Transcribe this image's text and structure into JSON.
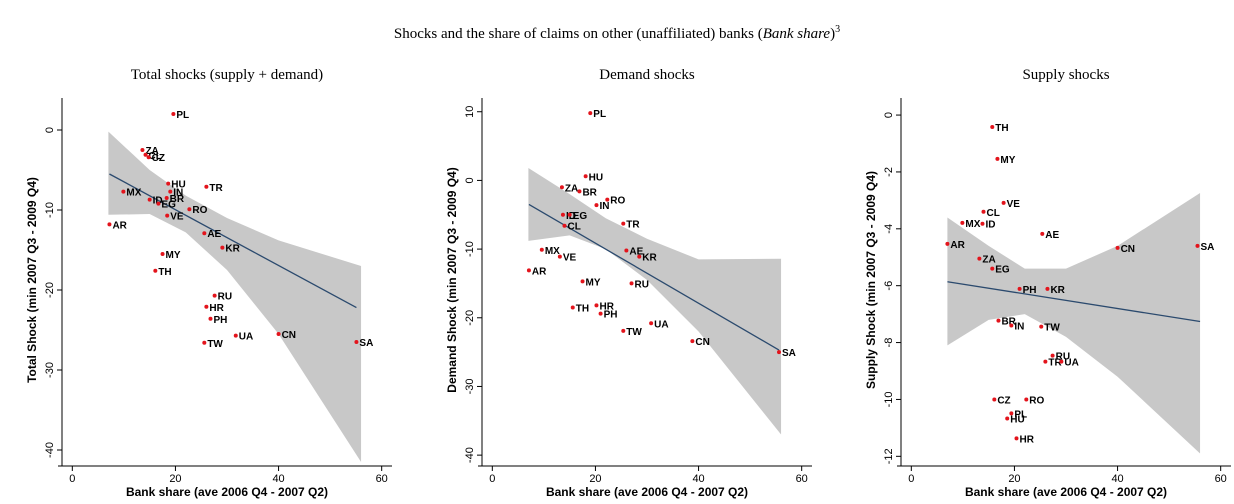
{
  "title_parts": [
    "Shocks and the share of claims on other (unaffiliated) banks (",
    "Bank share",
    ")",
    "3"
  ],
  "chart_data": [
    {
      "type": "scatter",
      "title": "Total shocks (supply + demand)",
      "xlabel": "Bank share (ave 2006 Q4 - 2007 Q2)",
      "ylabel": "Total Shock (min 2007 Q3 - 2009 Q4)",
      "xlim": [
        -2,
        62
      ],
      "ylim": [
        -41.5,
        4
      ],
      "xticks": [
        0,
        20,
        40,
        60
      ],
      "yticks": [
        0,
        -10,
        -20,
        -30,
        -40
      ],
      "series": [
        {
          "color": "#e3141c",
          "labels": [
            "PL",
            "ZA",
            "CL",
            "CZ",
            "HU",
            "IN",
            "BR",
            "ID",
            "TR",
            "MX",
            "EG",
            "RO",
            "VE",
            "AR",
            "AE",
            "KR",
            "MY",
            "TH",
            "RU",
            "HR",
            "PH",
            "UA",
            "CN",
            "TW",
            "SA"
          ],
          "x": [
            19.6,
            13.6,
            14.2,
            14.8,
            18.6,
            19.0,
            18.3,
            15.0,
            26.0,
            9.9,
            16.7,
            22.7,
            18.4,
            7.2,
            25.6,
            29.1,
            17.5,
            16.1,
            27.6,
            26.0,
            26.8,
            31.7,
            40.0,
            25.6,
            55.1
          ],
          "values": [
            2.0,
            -2.5,
            -3.1,
            -3.4,
            -6.7,
            -7.7,
            -8.5,
            -8.7,
            -7.1,
            -7.7,
            -9.2,
            -9.9,
            -10.7,
            -11.8,
            -12.9,
            -14.7,
            -15.5,
            -17.6,
            -20.7,
            -22.1,
            -23.6,
            -25.7,
            -25.5,
            -26.6,
            -26.5
          ]
        }
      ],
      "fit": {
        "color": "#2b4a6e",
        "x": [
          7.2,
          55.1
        ],
        "values": [
          -5.5,
          -22.2
        ]
      },
      "ci": {
        "color": "#c8c8c8",
        "x": [
          7,
          15,
          22,
          30,
          40,
          56
        ],
        "lower": [
          -10.6,
          -10.5,
          -12.8,
          -17.5,
          -25.5,
          -41.5
        ],
        "upper": [
          -0.2,
          -5.0,
          -8.2,
          -11.0,
          -13.8,
          -17.0
        ]
      }
    },
    {
      "type": "scatter",
      "title": "Demand shocks",
      "xlabel": "Bank share (ave 2006 Q4 - 2007 Q2)",
      "ylabel": "Demand Shock (min 2007 Q3 - 2009 Q4)",
      "xlim": [
        -2,
        62
      ],
      "ylim": [
        -41,
        12
      ],
      "xticks": [
        0,
        20,
        40,
        60
      ],
      "yticks": [
        10,
        0,
        -10,
        -20,
        -30,
        -40
      ],
      "series": [
        {
          "color": "#e3141c",
          "labels": [
            "PL",
            "HU",
            "ZA",
            "BR",
            "RO",
            "IN",
            "ID",
            "EG",
            "CL",
            "TR",
            "MX",
            "AE",
            "KR",
            "VE",
            "AR",
            "MY",
            "RU",
            "HR",
            "TH",
            "PH",
            "UA",
            "TW",
            "CN",
            "SA"
          ],
          "x": [
            19.0,
            18.1,
            13.5,
            16.9,
            22.3,
            20.2,
            13.7,
            15.0,
            14.0,
            25.4,
            9.6,
            26.0,
            28.5,
            13.1,
            7.1,
            17.5,
            27.0,
            20.2,
            15.6,
            21.0,
            30.8,
            25.4,
            38.8,
            55.6
          ],
          "values": [
            9.8,
            0.6,
            -1.0,
            -1.6,
            -2.8,
            -3.6,
            -5.0,
            -5.0,
            -6.6,
            -6.3,
            -10.1,
            -10.2,
            -11.1,
            -11.1,
            -13.1,
            -14.7,
            -15.0,
            -18.2,
            -18.5,
            -19.4,
            -20.8,
            -21.9,
            -23.4,
            -25.0
          ]
        }
      ],
      "fit": {
        "color": "#2b4a6e",
        "x": [
          7.1,
          55.6
        ],
        "values": [
          -3.5,
          -24.7
        ]
      },
      "ci": {
        "color": "#c8c8c8",
        "x": [
          7,
          15,
          22,
          30,
          40,
          56
        ],
        "lower": [
          -8.8,
          -8.0,
          -10.0,
          -14.5,
          -22.0,
          -37.0
        ],
        "upper": [
          1.8,
          -2.0,
          -5.5,
          -8.5,
          -11.5,
          -11.4
        ]
      }
    },
    {
      "type": "scatter",
      "title": "Supply shocks",
      "xlabel": "Bank share (ave 2006 Q4 - 2007 Q2)",
      "ylabel": "Supply Shock (min 2007 Q3 - 2009 Q4)",
      "xlim": [
        -2,
        62
      ],
      "ylim": [
        -12.2,
        0.6
      ],
      "xticks": [
        0,
        20,
        40,
        60
      ],
      "yticks": [
        0,
        -2,
        -4,
        -6,
        -8,
        -10,
        -12
      ],
      "series": [
        {
          "color": "#e3141c",
          "labels": [
            "TH",
            "MY",
            "VE",
            "CL",
            "MX",
            "ID",
            "AE",
            "AR",
            "CN",
            "SA",
            "ZA",
            "EG",
            "PH",
            "KR",
            "BR",
            "IN",
            "TW",
            "RU",
            "TR",
            "UA",
            "CZ",
            "RO",
            "PL",
            "HU",
            "HR"
          ],
          "x": [
            15.7,
            16.7,
            17.9,
            14.0,
            9.9,
            13.8,
            25.4,
            7.0,
            40.0,
            55.5,
            13.2,
            15.7,
            21.0,
            26.4,
            16.9,
            19.4,
            25.2,
            27.4,
            26.0,
            29.1,
            16.1,
            22.3,
            19.4,
            18.6,
            20.4
          ],
          "values": [
            -0.42,
            -1.54,
            -3.09,
            -3.4,
            -3.79,
            -3.82,
            -4.18,
            -4.53,
            -4.67,
            -4.6,
            -5.05,
            -5.4,
            -6.11,
            -6.11,
            -7.23,
            -7.4,
            -7.44,
            -8.46,
            -8.67,
            -8.67,
            -10.0,
            -10.0,
            -10.49,
            -10.67,
            -11.37
          ]
        }
      ],
      "fit": {
        "color": "#2b4a6e",
        "x": [
          7.0,
          56.0
        ],
        "values": [
          -5.86,
          -7.26
        ]
      },
      "ci": {
        "color": "#c8c8c8",
        "x": [
          7,
          15,
          22,
          30,
          40,
          56
        ],
        "lower": [
          -8.1,
          -7.2,
          -7.0,
          -7.8,
          -9.2,
          -11.9
        ],
        "upper": [
          -3.6,
          -4.6,
          -5.4,
          -5.4,
          -4.6,
          -2.74
        ]
      }
    }
  ]
}
